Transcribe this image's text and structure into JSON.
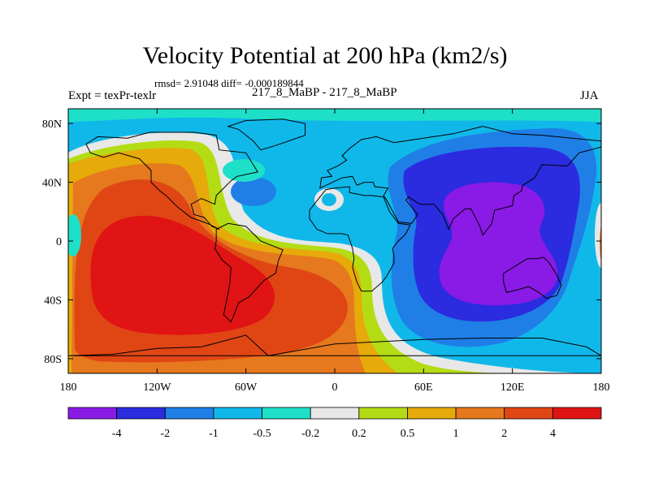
{
  "chart_data": {
    "type": "heatmap",
    "title": "Velocity Potential at 200 hPa (km2/s)",
    "stats": "rmsd= 2.91048 diff= -0.000189844",
    "experiment": "Expt = texPr-texlr",
    "case": "217_8_MaBP - 217_8_MaBP",
    "season": "JJA",
    "variable": "Velocity Potential at 200 hPa",
    "units": "km2/s",
    "x_ticks": [
      "180",
      "120W",
      "60W",
      "0",
      "60E",
      "120E",
      "180"
    ],
    "x_tick_values": [
      -180,
      -120,
      -60,
      0,
      60,
      120,
      180
    ],
    "y_ticks": [
      "80N",
      "40N",
      "0",
      "40S",
      "80S"
    ],
    "y_tick_values": [
      80,
      40,
      0,
      -40,
      -80
    ],
    "xlim": [
      -180,
      180
    ],
    "ylim": [
      -90,
      90
    ],
    "colorbar": {
      "levels": [
        "-4",
        "-2",
        "-1",
        "-0.5",
        "-0.2",
        "0.2",
        "0.5",
        "1",
        "2",
        "4"
      ],
      "level_values": [
        -4,
        -2,
        -1,
        -0.5,
        -0.2,
        0.2,
        0.5,
        1,
        2,
        4
      ],
      "colors": [
        "#8a1ae6",
        "#2b2be0",
        "#1f7fe6",
        "#10b8ea",
        "#1ee0c8",
        "#e8e8e8",
        "#b4dc14",
        "#e6aa0a",
        "#e6781e",
        "#e04614",
        "#e01414"
      ]
    },
    "field_extremes": [
      {
        "region": "east Pacific / south Pacific",
        "lon": -110,
        "lat": -20,
        "value": 4.5
      },
      {
        "region": "Asia / Indian Ocean / Indonesia",
        "lon": 110,
        "lat": 5,
        "value": -4.5
      }
    ]
  }
}
